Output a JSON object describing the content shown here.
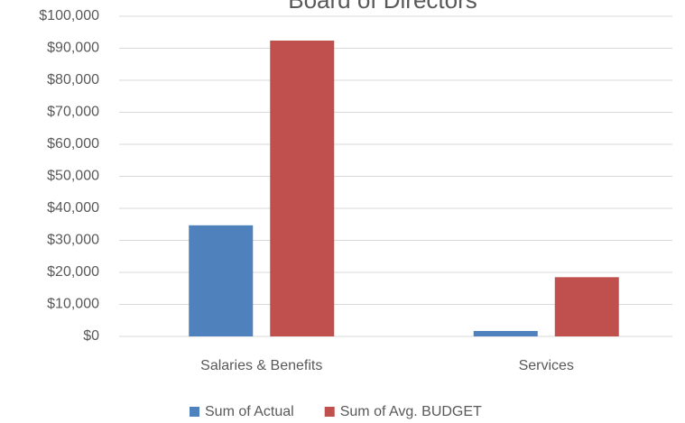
{
  "chart_data": {
    "type": "bar",
    "title": "Board of Directors",
    "categories": [
      "Salaries & Benefits",
      "Services"
    ],
    "series": [
      {
        "name": "Sum of Actual",
        "color": "#4f81bd",
        "values": [
          34700,
          1700
        ]
      },
      {
        "name": "Sum of Avg. BUDGET",
        "color": "#c0504d",
        "values": [
          92400,
          18500
        ]
      }
    ],
    "ylim": [
      0,
      100000
    ],
    "yticks": [
      {
        "value": 0,
        "label": "$0"
      },
      {
        "value": 10000,
        "label": "$10,000"
      },
      {
        "value": 20000,
        "label": "$20,000"
      },
      {
        "value": 30000,
        "label": "$30,000"
      },
      {
        "value": 40000,
        "label": "$40,000"
      },
      {
        "value": 50000,
        "label": "$50,000"
      },
      {
        "value": 60000,
        "label": "$60,000"
      },
      {
        "value": 70000,
        "label": "$70,000"
      },
      {
        "value": 80000,
        "label": "$80,000"
      },
      {
        "value": 90000,
        "label": "$90,000"
      },
      {
        "value": 100000,
        "label": "$100,000"
      }
    ],
    "grid": true,
    "legend": "bottom"
  }
}
